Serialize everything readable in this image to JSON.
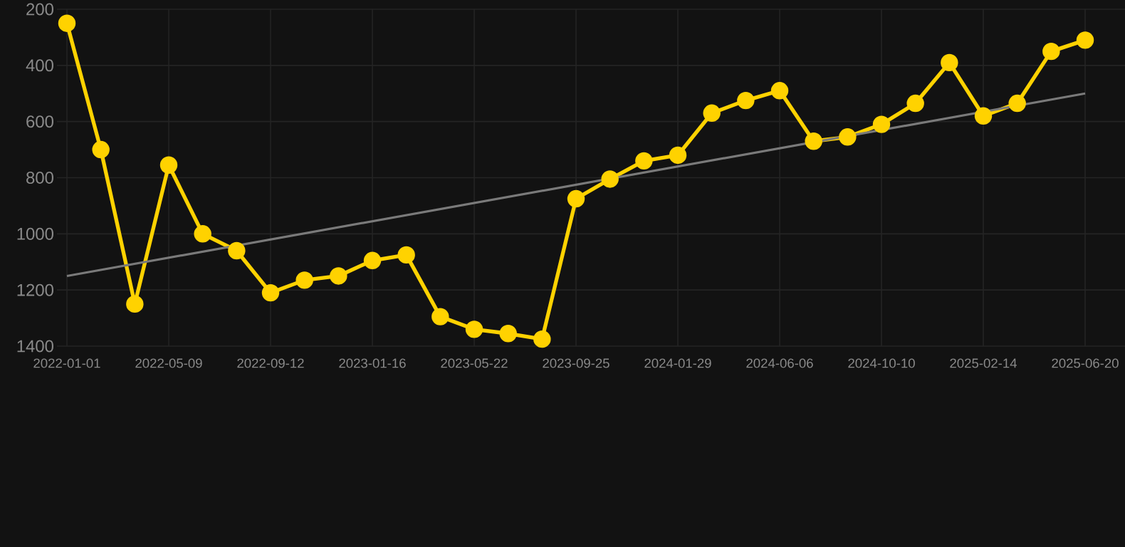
{
  "chart_data": {
    "type": "line",
    "categories": [
      "2022-01-01",
      null,
      null,
      "2022-05-09",
      null,
      null,
      "2022-09-12",
      null,
      null,
      "2023-01-16",
      null,
      null,
      "2023-05-22",
      null,
      null,
      "2023-09-25",
      null,
      null,
      "2024-01-29",
      null,
      null,
      "2024-06-06",
      null,
      null,
      "2024-10-10",
      null,
      null,
      "2025-02-14",
      null,
      null,
      "2025-06-20"
    ],
    "series": [
      {
        "color": "#ffd200",
        "values": [
          250,
          700,
          1250,
          755,
          1000,
          1060,
          1210,
          1165,
          1150,
          1095,
          1075,
          1295,
          1340,
          1355,
          1375,
          875,
          805,
          740,
          720,
          570,
          525,
          490,
          670,
          655,
          610,
          535,
          390,
          580,
          535,
          350,
          310
        ]
      },
      {
        "type": "line",
        "color": "#7a7a7a",
        "marker": "none",
        "values": [
          1150,
          null,
          null,
          null,
          null,
          null,
          null,
          null,
          null,
          null,
          null,
          null,
          null,
          null,
          null,
          null,
          null,
          null,
          null,
          null,
          null,
          null,
          null,
          null,
          null,
          null,
          null,
          null,
          null,
          null,
          500
        ]
      }
    ],
    "ylim": [
      1400,
      200
    ],
    "yticks": [
      200,
      400,
      600,
      800,
      1000,
      1200,
      1400
    ],
    "grid": true,
    "marker": "circle",
    "line_style": "solid"
  }
}
